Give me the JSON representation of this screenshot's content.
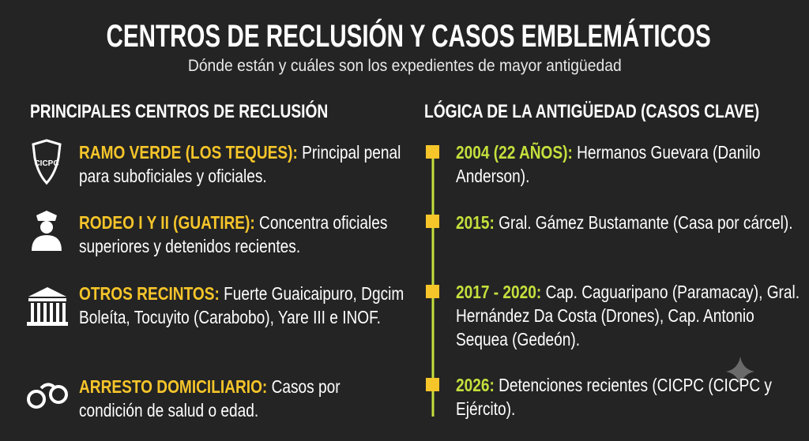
{
  "header": {
    "title": "CENTROS DE RECLUSIÓN Y CASOS EMBLEMÁTICOS",
    "subtitle": "Dónde están y cuáles son los expedientes de mayor antigüedad"
  },
  "left": {
    "heading": "PRINCIPALES CENTROS DE RECLUSIÓN",
    "items": [
      {
        "label": "RAMO VERDE (LOS TEQUES):",
        "text": "Principal penal para suboficiales y oficiales."
      },
      {
        "label": "RODEO I Y II (GUATIRE):",
        "text": "Concentra oficiales superiores y detenidos recientes."
      },
      {
        "label": "OTROS RECINTOS:",
        "text": "Fuerte Guaicaipuro, Dgcim Boleíta, Tocuyito (Carabobo), Yare III e INOF."
      },
      {
        "label": "ARRESTO DOMICILIARIO:",
        "text": "Casos por condición de salud o edad."
      }
    ]
  },
  "right": {
    "heading": "LÓGICA DE LA ANTIGÜEDAD (CASOS CLAVE)",
    "items": [
      {
        "label": "2004 (22 AÑOS):",
        "text": "Hermanos Guevara (Danilo Anderson)."
      },
      {
        "label": "2015:",
        "text": "Gral. Gámez Bustamante (Casa por cárcel)."
      },
      {
        "label": "2017 - 2020:",
        "text": "Cap. Caguaripano (Paramacay), Gral. Hernández Da Costa (Drones), Cap. Antonio Sequea (Gedeón)."
      },
      {
        "label": "2026:",
        "text": "Detenciones recientes (CICPC (CICPC y Ejército)."
      }
    ]
  }
}
